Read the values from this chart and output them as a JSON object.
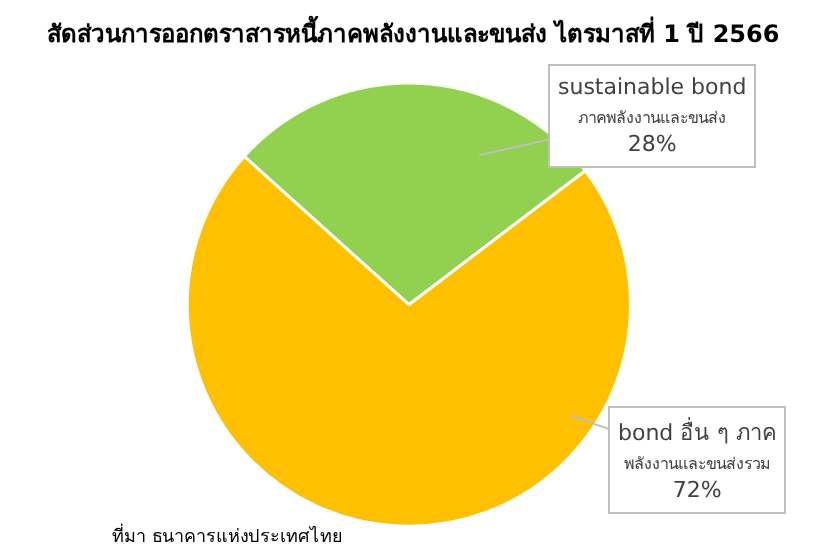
{
  "chart_data": {
    "type": "pie",
    "title": "สัดส่วนการออกตราสารหนี้ภาคพลังงานและขนส่ง ไตรมาสที่ 1 ปี 2566",
    "categories": [
      "sustainable bond\nภาคพลังงานและขนส่ง",
      "bond อื่น ๆ ภาค\nพลังงานและขนส่งรวม"
    ],
    "values": [
      28,
      72
    ],
    "colors": [
      "#92d050",
      "#ffc000"
    ],
    "value_labels": [
      "28%",
      "72%"
    ],
    "legend": false,
    "annotations": [
      "ที่มา ธนาคารแห่งประเทศไทย"
    ]
  }
}
